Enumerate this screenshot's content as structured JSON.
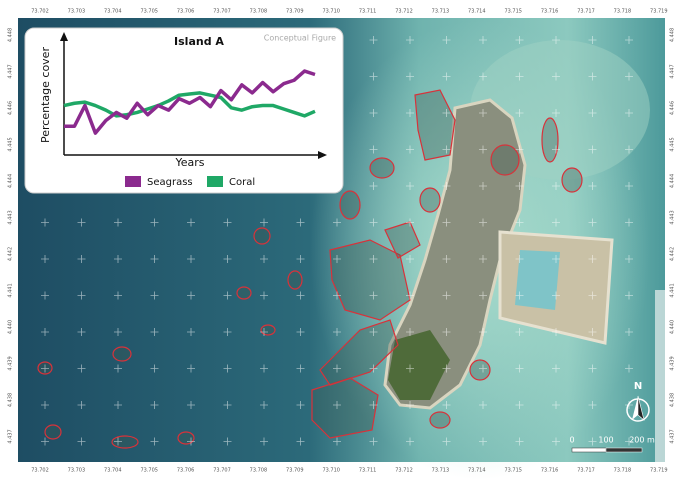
{
  "chart_data": {
    "type": "line",
    "title": "Island A",
    "subtitle": "Conceptual Figure",
    "y_label": "Percentage cover",
    "x_label": "Years",
    "x": [
      0,
      1,
      2,
      3,
      4,
      5,
      6,
      7,
      8,
      9,
      10,
      11,
      12,
      13,
      14,
      15,
      16,
      17,
      18,
      19,
      20,
      21,
      22,
      23,
      24
    ],
    "xlim": [
      0,
      24
    ],
    "ylim": [
      0,
      100
    ],
    "series": [
      {
        "name": "Seagrass",
        "color": "#8b2a8e",
        "values": [
          25,
          25,
          43,
          19,
          30,
          37,
          32,
          45,
          35,
          43,
          39,
          49,
          45,
          50,
          42,
          56,
          48,
          61,
          54,
          63,
          55,
          62,
          65,
          73,
          70
        ]
      },
      {
        "name": "Coral",
        "color": "#1fa866",
        "values": [
          43,
          45,
          46,
          43,
          39,
          34,
          35,
          37,
          40,
          43,
          47,
          52,
          53,
          54,
          52,
          50,
          41,
          39,
          42,
          43,
          43,
          40,
          37,
          34,
          38
        ]
      }
    ]
  },
  "map": {
    "lon_labels": [
      "73.702",
      "73.703",
      "73.704",
      "73.705",
      "73.706",
      "73.707",
      "73.708",
      "73.709",
      "73.710",
      "73.711",
      "73.712",
      "73.713",
      "73.714",
      "73.715",
      "73.716",
      "73.717",
      "73.718",
      "73.719"
    ],
    "lat_labels": [
      "4.448",
      "4.447",
      "4.446",
      "4.445",
      "4.444",
      "4.443",
      "4.442",
      "4.441",
      "4.440",
      "4.439",
      "4.438",
      "4.437"
    ],
    "scale_labels": [
      "0",
      "100",
      "200 m"
    ],
    "north": "N"
  }
}
